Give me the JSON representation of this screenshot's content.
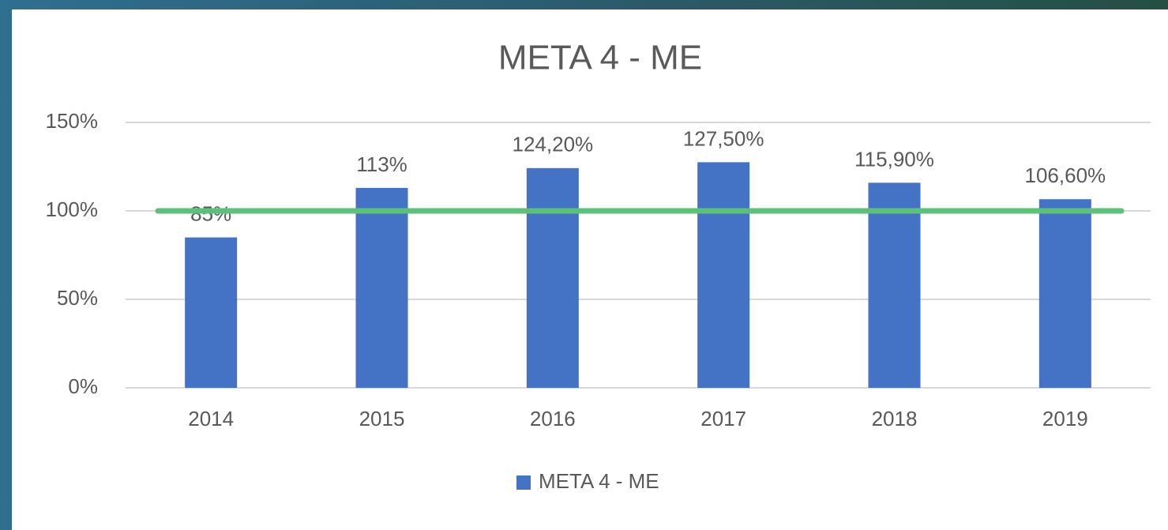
{
  "chart_data": {
    "type": "bar",
    "title": "META 4 - ME",
    "categories": [
      "2014",
      "2015",
      "2016",
      "2017",
      "2018",
      "2019"
    ],
    "series": [
      {
        "name": "META 4 - ME",
        "color": "#4472c4",
        "values": [
          85,
          113,
          124.2,
          127.5,
          115.9,
          106.6
        ],
        "value_labels": [
          "85%",
          "113%",
          "124,20%",
          "127,50%",
          "115,90%",
          "106,60%"
        ]
      }
    ],
    "ylim": [
      0,
      150
    ],
    "yticks": [
      {
        "value": 0,
        "label": "0%"
      },
      {
        "value": 50,
        "label": "50%"
      },
      {
        "value": 100,
        "label": "100%"
      },
      {
        "value": 150,
        "label": "150%"
      }
    ],
    "grid": true,
    "legend": "bottom",
    "reference_line": {
      "value": 100,
      "color": "#5cc27a"
    }
  }
}
